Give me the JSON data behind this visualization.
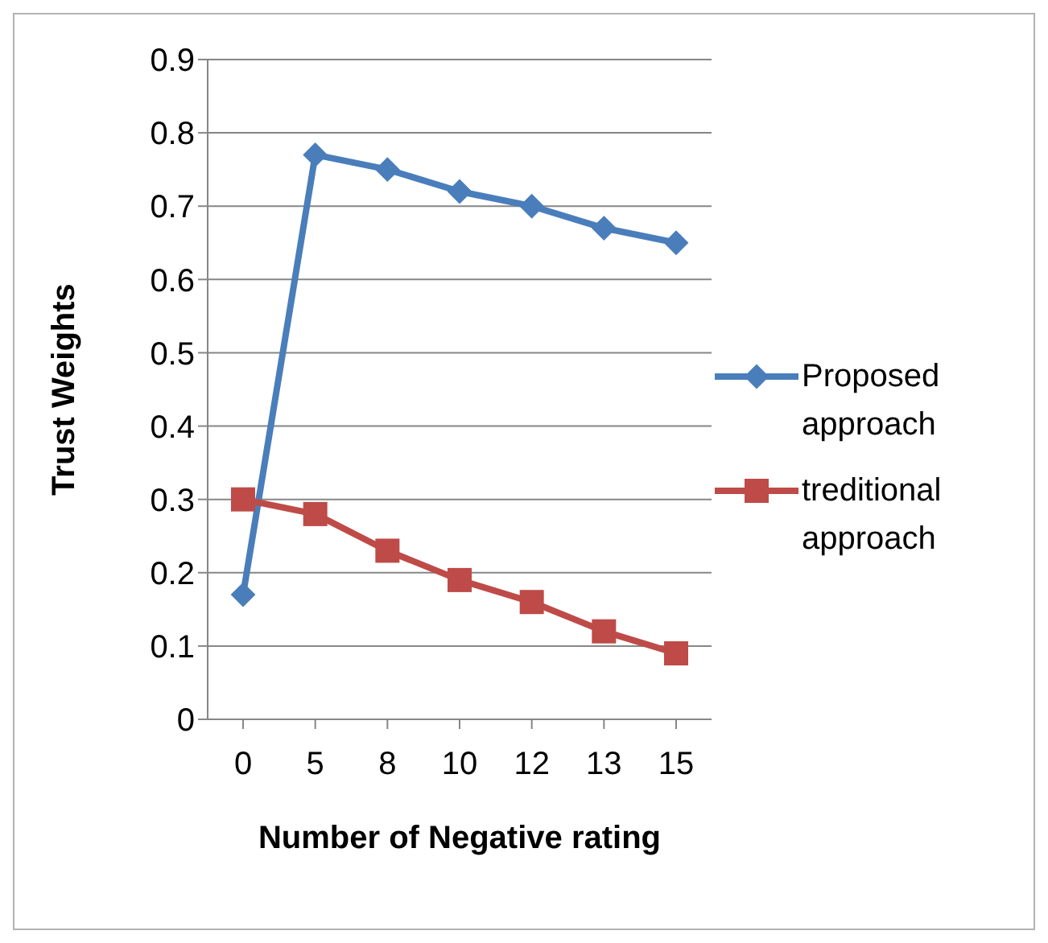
{
  "chart_data": {
    "type": "line",
    "xlabel": "Number of Negative rating",
    "ylabel": "Trust Weights",
    "categories": [
      "0",
      "5",
      "8",
      "10",
      "12",
      "13",
      "15"
    ],
    "series": [
      {
        "name": "Proposed approach",
        "color": "#4a7ebb",
        "marker": "diamond",
        "values": [
          0.17,
          0.77,
          0.75,
          0.72,
          0.7,
          0.67,
          0.65
        ]
      },
      {
        "name": "treditional approach",
        "color": "#be4b48",
        "marker": "square",
        "values": [
          0.3,
          0.28,
          0.23,
          0.19,
          0.16,
          0.12,
          0.09
        ]
      }
    ],
    "ylim": [
      0,
      0.9
    ],
    "yticks": [
      0,
      0.1,
      0.2,
      0.3,
      0.4,
      0.5,
      0.6,
      0.7,
      0.8,
      0.9
    ],
    "grid": "y",
    "legend": "right"
  }
}
